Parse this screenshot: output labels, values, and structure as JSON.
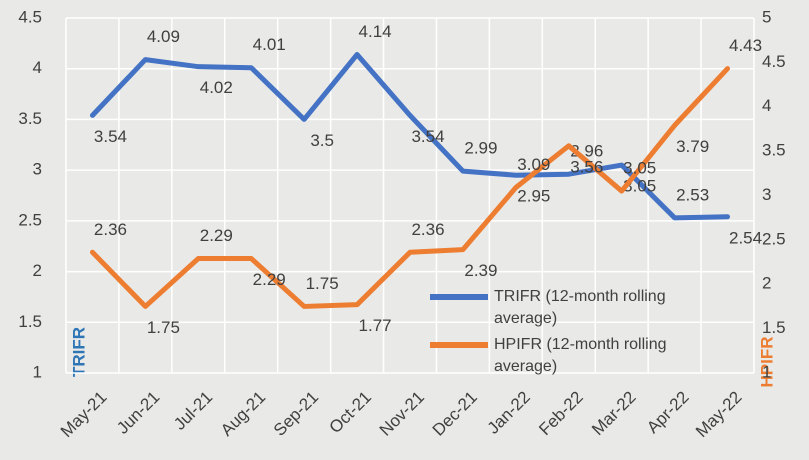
{
  "chart_data": {
    "type": "line",
    "categories": [
      "May-21",
      "Jun-21",
      "Jul-21",
      "Aug-21",
      "Sep-21",
      "Oct-21",
      "Nov-21",
      "Dec-21",
      "Jan-22",
      "Feb-22",
      "Mar-22",
      "Apr-22",
      "May-22"
    ],
    "series": [
      {
        "name": "TRIFR (12-month rolling average)",
        "color": "#4472c4",
        "values": [
          3.54,
          4.09,
          4.02,
          4.01,
          3.5,
          4.14,
          3.54,
          2.99,
          2.95,
          2.96,
          3.05,
          2.53,
          2.54
        ]
      },
      {
        "name": "HPIFR (12-month rolling average)",
        "color": "#ed7d31",
        "axis": "y2",
        "values": [
          2.36,
          1.75,
          2.29,
          2.29,
          1.75,
          1.77,
          2.36,
          2.39,
          3.09,
          3.56,
          3.05,
          3.79,
          4.43
        ]
      }
    ],
    "ylabel": "TRIFR",
    "y2label": "HPIFR",
    "ylim": [
      1,
      4.5
    ],
    "yticks": [
      1,
      1.5,
      2,
      2.5,
      3,
      3.5,
      4,
      4.5
    ],
    "y2lim": [
      1,
      5
    ],
    "y2ticks": [
      1,
      1.5,
      2,
      2.5,
      3,
      3.5,
      4,
      4.5,
      5
    ],
    "grid": true
  }
}
